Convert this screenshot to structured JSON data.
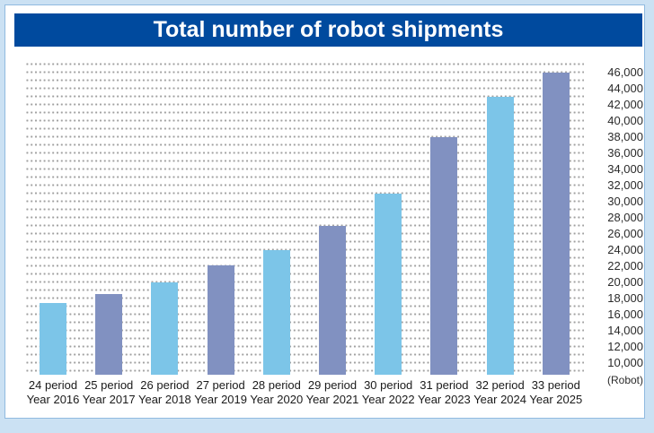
{
  "page": {
    "background_color": "#cbe1f3",
    "panel_background": "#ffffff",
    "panel_border_color": "#90bae0"
  },
  "title_banner": {
    "text": "Total number of robot shipments",
    "background_color": "#004a9e",
    "text_color": "#ffffff"
  },
  "chart_data": {
    "type": "bar",
    "title": "Total number of robot shipments",
    "unit_label": "(Robot)",
    "categories": [
      {
        "period": "24 period",
        "year": "Year 2016"
      },
      {
        "period": "25 period",
        "year": "Year 2017"
      },
      {
        "period": "26 period",
        "year": "Year 2018"
      },
      {
        "period": "27 period",
        "year": "Year 2019"
      },
      {
        "period": "28 period",
        "year": "Year 2020"
      },
      {
        "period": "29 period",
        "year": "Year 2021"
      },
      {
        "period": "30 period",
        "year": "Year 2022"
      },
      {
        "period": "31 period",
        "year": "Year 2023"
      },
      {
        "period": "32 period",
        "year": "Year 2024"
      },
      {
        "period": "33 period",
        "year": "Year 2025"
      }
    ],
    "values": [
      17400,
      18500,
      19900,
      22100,
      24000,
      26900,
      30900,
      38000,
      42900,
      46000
    ],
    "bar_colors": [
      "#7cc5e8",
      "#8191c1"
    ],
    "bar_color_pattern": "alternating light/dark starting with light",
    "y_axis": {
      "side": "right",
      "min": 8500,
      "max": 47500,
      "tick_min": 10000,
      "tick_max": 46000,
      "tick_step": 2000,
      "tick_labels": [
        "10,000",
        "12,000",
        "14,000",
        "16,000",
        "18,000",
        "20,000",
        "22,000",
        "24,000",
        "26,000",
        "28,000",
        "30,000",
        "32,000",
        "34,000",
        "36,000",
        "38,000",
        "40,000",
        "42,000",
        "44,000",
        "46,000"
      ]
    },
    "grid": {
      "style": "dotted-horizontal",
      "interval": 1000,
      "color": "#a0a0a0"
    },
    "legend": "none"
  }
}
